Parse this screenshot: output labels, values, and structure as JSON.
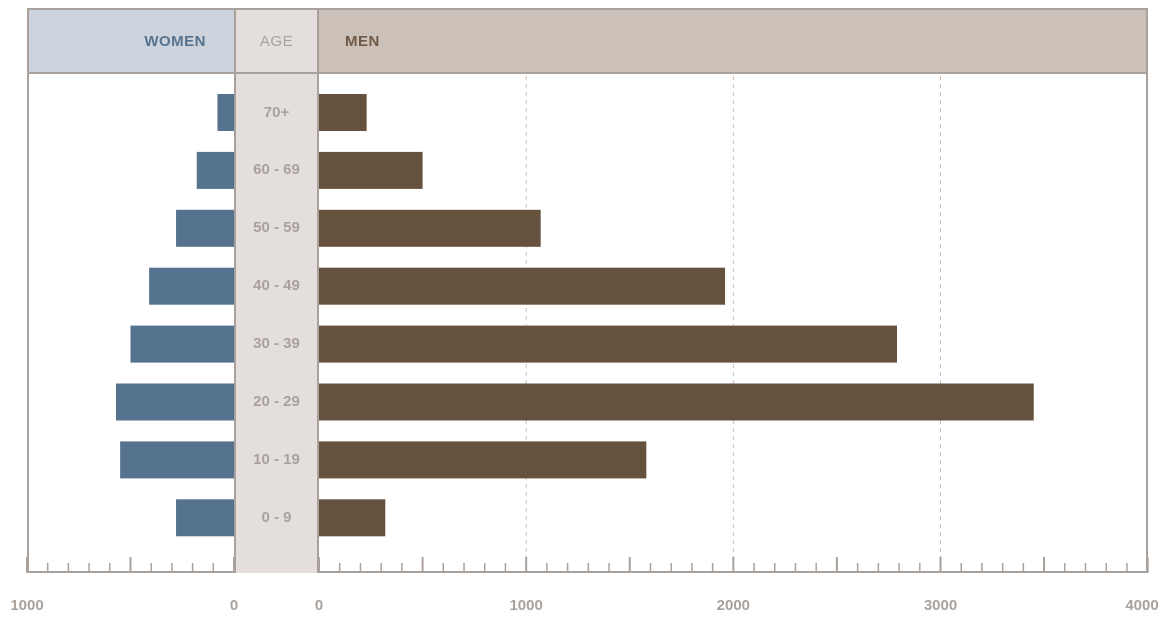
{
  "headers": {
    "women": "WOMEN",
    "age": "AGE",
    "men": "MEN"
  },
  "colors": {
    "women": "#55728e",
    "men": "#66513f",
    "age_bg": "#e4dfdc",
    "border": "#a9a19b"
  },
  "chart_data": {
    "type": "bar",
    "orientation": "horizontal",
    "categories": [
      "70+",
      "60 - 69",
      "50 - 59",
      "40 - 49",
      "30 - 39",
      "20 - 29",
      "10 - 19",
      "0 - 9"
    ],
    "series": [
      {
        "name": "WOMEN",
        "values": [
          80,
          180,
          280,
          410,
          500,
          570,
          550,
          280
        ]
      },
      {
        "name": "MEN",
        "values": [
          230,
          500,
          1070,
          1960,
          2790,
          3450,
          1580,
          320
        ]
      }
    ],
    "women_axis": {
      "range": [
        1000,
        0
      ],
      "ticks": [
        "1000",
        "0"
      ]
    },
    "men_axis": {
      "range": [
        0,
        4000
      ],
      "ticks": [
        "0",
        "1000",
        "2000",
        "3000",
        "4000"
      ]
    },
    "grid": "vertical dashed at 1000, 2000, 3000 (men)"
  }
}
